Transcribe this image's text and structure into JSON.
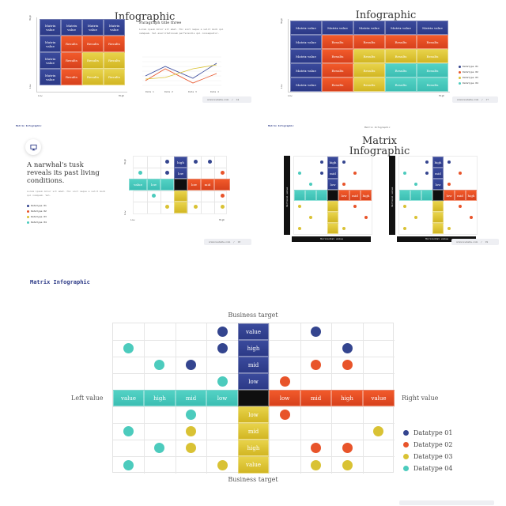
{
  "slide1": {
    "title": "Matrix\nInfographic",
    "axis_low": "Low",
    "axis_high": "High",
    "matrix_label": "Matrix value",
    "result_label": "Results",
    "paragraph_title": "Paragraph title three",
    "paragraph_text": "Lorem ipsum dolor sit amet. Hic sint neque a velit modi qui numquam. Vel exercitationem perferendis qui consequatur.",
    "line_chart_categories": [
      "Data 1",
      "Data 2",
      "Data 3",
      "Data 4"
    ],
    "line_chart_yticks": [
      "6",
      "5",
      "4",
      "3",
      "2",
      "1",
      "0"
    ],
    "footer_url": "www.website.com",
    "page_number": "14"
  },
  "slide2": {
    "title": "Matrix\nInfographic",
    "axis_low": "Low",
    "axis_high": "High",
    "matrix_label": "Matrix value",
    "result_label": "Results",
    "legend": [
      "Datatype 01",
      "Datatype 02",
      "Datatype 03",
      "Datatype 04"
    ],
    "footer_url": "www.website.com",
    "page_number": "17"
  },
  "slide3": {
    "brand": "Matrix Infographic",
    "headline": "A narwhal's tusk reveals its past living conditions.",
    "body": "Lorem ipsum dolor sit amet. Hic sint neque a velit modi qui numquam. Vel.",
    "legend": [
      "Datatype 01",
      "Datatype 02",
      "Datatype 03",
      "Datatype 04"
    ],
    "axis_low": "Low",
    "axis_high": "High",
    "cell_labels": {
      "high": "high",
      "low": "low",
      "value": "value",
      "mid": "mid"
    },
    "footer_url": "www.website.com",
    "page_number": "18"
  },
  "slide4": {
    "brand": "Matrix Infographic",
    "center_brand": "Matrix Infographic",
    "title": "Matrix\nInfographic",
    "vertical_value": "Vertical value",
    "horizontal_value": "Horizontal value",
    "footer_url": "www.website.com",
    "page_number": "19"
  },
  "slide5": {
    "brand": "Matrix Infographic",
    "top_label": "Business target",
    "bottom_label": "Business target",
    "left_label": "Left value",
    "right_label": "Right value",
    "vertical_top": [
      "value",
      "high",
      "mid",
      "low"
    ],
    "vertical_bottom": [
      "low",
      "mid",
      "high",
      "value"
    ],
    "horizontal_left": [
      "value",
      "high",
      "mid",
      "low"
    ],
    "horizontal_right": [
      "low",
      "mid",
      "high",
      "value"
    ],
    "legend": [
      "Datatype 01",
      "Datatype 02",
      "Datatype 03",
      "Datatype 04"
    ],
    "colors": {
      "navy": "#34458f",
      "red": "#e8542a",
      "yellow": "#d9c234",
      "teal": "#4ccbbd"
    }
  }
}
